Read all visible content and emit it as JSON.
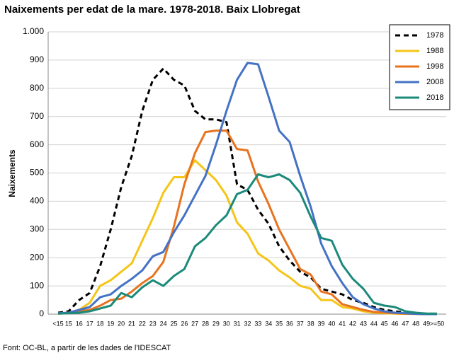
{
  "chart_data": {
    "type": "line",
    "title": "Naixements per edat de la mare. 1978-2018. Baix Llobregat",
    "y_label": "Naixements",
    "source": "Font: OC-BL, a partir de les dades de l'IDESCAT",
    "categories": [
      "<15",
      "15",
      "16",
      "17",
      "18",
      "19",
      "20",
      "21",
      "22",
      "23",
      "24",
      "25",
      "26",
      "27",
      "28",
      "29",
      "30",
      "31",
      "32",
      "33",
      "34",
      "35",
      "36",
      "37",
      "38",
      "39",
      "40",
      "41",
      "42",
      "43",
      "44",
      "45",
      "46",
      "47",
      "48",
      "49",
      ">=50"
    ],
    "series": [
      {
        "name": "1978",
        "color": "#000000",
        "dashed": true,
        "values": [
          5,
          10,
          50,
          75,
          170,
          300,
          450,
          560,
          720,
          830,
          870,
          830,
          810,
          720,
          690,
          690,
          680,
          460,
          440,
          370,
          320,
          240,
          190,
          150,
          130,
          90,
          80,
          70,
          50,
          40,
          25,
          15,
          10,
          5,
          3,
          2,
          1
        ]
      },
      {
        "name": "1988",
        "color": "#f5c518",
        "values": [
          2,
          5,
          15,
          40,
          100,
          120,
          150,
          180,
          260,
          340,
          430,
          485,
          485,
          545,
          510,
          475,
          420,
          325,
          285,
          215,
          190,
          155,
          130,
          100,
          90,
          50,
          50,
          25,
          20,
          10,
          5,
          3,
          2,
          1,
          1,
          0,
          0
        ]
      },
      {
        "name": "1998",
        "color": "#e8731f",
        "values": [
          2,
          3,
          10,
          15,
          30,
          50,
          55,
          80,
          110,
          135,
          185,
          310,
          460,
          570,
          645,
          650,
          650,
          585,
          580,
          470,
          390,
          300,
          230,
          160,
          140,
          80,
          70,
          35,
          25,
          15,
          8,
          5,
          3,
          2,
          1,
          0,
          0
        ]
      },
      {
        "name": "2008",
        "color": "#4472c4",
        "values": [
          3,
          5,
          15,
          25,
          60,
          70,
          100,
          125,
          155,
          205,
          220,
          290,
          350,
          420,
          490,
          600,
          720,
          830,
          890,
          885,
          770,
          650,
          610,
          490,
          380,
          250,
          170,
          110,
          60,
          35,
          20,
          10,
          5,
          3,
          1,
          0,
          0
        ]
      },
      {
        "name": "2018",
        "color": "#1b8a7a",
        "values": [
          2,
          3,
          5,
          10,
          20,
          30,
          75,
          60,
          95,
          120,
          100,
          135,
          160,
          240,
          270,
          315,
          350,
          425,
          440,
          495,
          485,
          495,
          475,
          430,
          345,
          270,
          260,
          175,
          125,
          90,
          40,
          30,
          25,
          10,
          5,
          2,
          2
        ]
      }
    ],
    "ylim": [
      0,
      1000
    ],
    "yticks": [
      0,
      100,
      200,
      300,
      400,
      500,
      600,
      700,
      800,
      900,
      {
        "value": 1000,
        "label": "1.000"
      }
    ],
    "grid": true,
    "legend": "top-right"
  }
}
